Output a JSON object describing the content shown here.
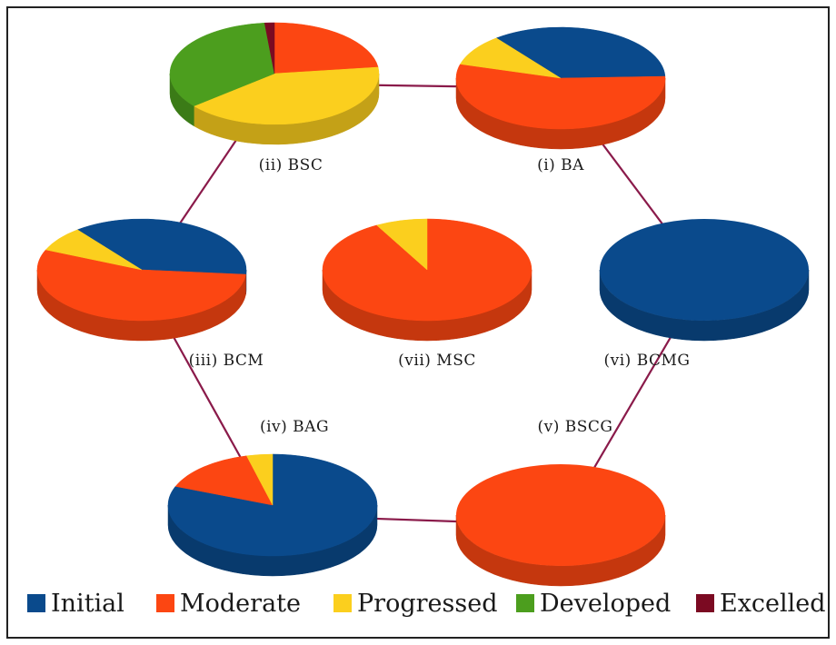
{
  "chart_data": {
    "type": "pie",
    "style": "3d",
    "legend_position": "bottom",
    "categories": [
      "Initial",
      "Moderate",
      "Progressed",
      "Developed",
      "Excelled"
    ],
    "colors": {
      "Initial": "#0a4a8c",
      "Moderate": "#fc4612",
      "Progressed": "#fbcf1e",
      "Developed": "#4c9e1e",
      "Excelled": "#7b0a22"
    },
    "connector_color": "#8a1a4a",
    "pies": [
      {
        "id": "i",
        "label": "(i) BA",
        "values": {
          "Initial": 35,
          "Moderate": 55,
          "Progressed": 10,
          "Developed": 0,
          "Excelled": 0
        }
      },
      {
        "id": "ii",
        "label": "(ii) BSC",
        "values": {
          "Initial": 0,
          "Moderate": 23,
          "Progressed": 41,
          "Developed": 34.5,
          "Excelled": 1.5
        }
      },
      {
        "id": "iii",
        "label": "(iii) BCM",
        "values": {
          "Initial": 37,
          "Moderate": 55,
          "Progressed": 8,
          "Developed": 0,
          "Excelled": 0
        }
      },
      {
        "id": "iv",
        "label": "(iv) BAG",
        "values": {
          "Initial": 81,
          "Moderate": 15,
          "Progressed": 4,
          "Developed": 0,
          "Excelled": 0
        }
      },
      {
        "id": "v",
        "label": "(v) BSCG",
        "values": {
          "Initial": 0,
          "Moderate": 100,
          "Progressed": 0,
          "Developed": 0,
          "Excelled": 0
        }
      },
      {
        "id": "vi",
        "label": "(vi) BCMG",
        "values": {
          "Initial": 100,
          "Moderate": 0,
          "Progressed": 0,
          "Developed": 0,
          "Excelled": 0
        }
      },
      {
        "id": "vii",
        "label": "(vii) MSC",
        "values": {
          "Initial": 0,
          "Moderate": 92,
          "Progressed": 8,
          "Developed": 0,
          "Excelled": 0
        }
      }
    ],
    "connections": [
      [
        "ii",
        "i"
      ],
      [
        "i",
        "vi"
      ],
      [
        "vi",
        "v"
      ],
      [
        "v",
        "iv"
      ],
      [
        "iv",
        "iii"
      ],
      [
        "iii",
        "ii"
      ]
    ]
  }
}
